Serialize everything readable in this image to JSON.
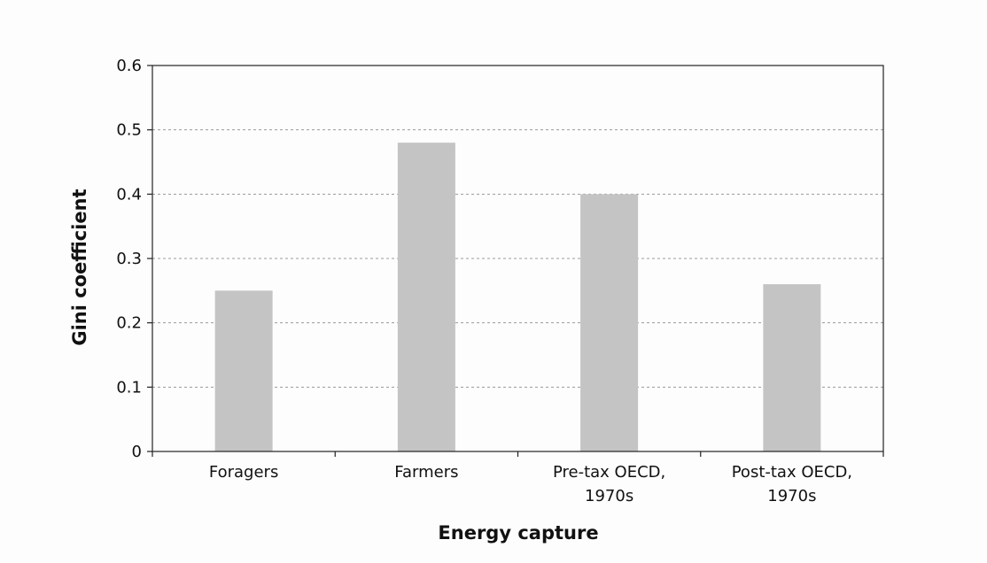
{
  "chart_data": {
    "type": "bar",
    "categories": [
      "Foragers",
      "Farmers",
      "Pre-tax OECD, 1970s",
      "Post-tax OECD, 1970s"
    ],
    "category_lines": [
      [
        "Foragers"
      ],
      [
        "Farmers"
      ],
      [
        "Pre-tax OECD,",
        "1970s"
      ],
      [
        "Post-tax OECD,",
        "1970s"
      ]
    ],
    "values": [
      0.25,
      0.48,
      0.4,
      0.26
    ],
    "title": "",
    "xlabel": "Energy capture",
    "ylabel": "Gini coefficient",
    "ylim": [
      0,
      0.6
    ],
    "yticks": [
      0,
      0.1,
      0.2,
      0.3,
      0.4,
      0.5,
      0.6
    ],
    "ytick_labels": [
      "0",
      "0.1",
      "0.2",
      "0.3",
      "0.4",
      "0.5",
      "0.6"
    ],
    "grid": "horizontal dashed",
    "legend": "none",
    "colors": {
      "bar": "#c4c4c4",
      "axis": "#222222",
      "grid": "#9a9a9a",
      "background": "#fdfdfd"
    }
  }
}
